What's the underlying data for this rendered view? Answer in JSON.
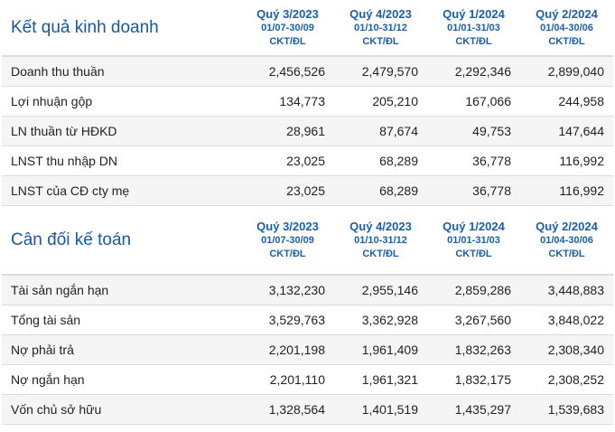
{
  "sections": [
    {
      "title": "Kết quả kinh doanh",
      "columns": [
        {
          "quarter": "Quý 3/2023",
          "range": "01/07-30/09",
          "audit": "CKT/ĐL"
        },
        {
          "quarter": "Quý 4/2023",
          "range": "01/10-31/12",
          "audit": "CKT/ĐL"
        },
        {
          "quarter": "Quý 1/2024",
          "range": "01/01-31/03",
          "audit": "CKT/ĐL"
        },
        {
          "quarter": "Quý 2/2024",
          "range": "01/04-30/06",
          "audit": "CKT/ĐL"
        }
      ],
      "rows": [
        {
          "label": "Doanh thu thuần",
          "values": [
            "2,456,526",
            "2,479,570",
            "2,292,346",
            "2,899,040"
          ]
        },
        {
          "label": "Lợi nhuận gộp",
          "values": [
            "134,773",
            "205,210",
            "167,066",
            "244,958"
          ]
        },
        {
          "label": "LN thuần từ HĐKD",
          "values": [
            "28,961",
            "87,674",
            "49,753",
            "147,644"
          ]
        },
        {
          "label": "LNST thu nhập DN",
          "values": [
            "23,025",
            "68,289",
            "36,778",
            "116,992"
          ]
        },
        {
          "label": "LNST của CĐ cty mẹ",
          "values": [
            "23,025",
            "68,289",
            "36,778",
            "116,992"
          ]
        }
      ]
    },
    {
      "title": "Cân đối kế toán",
      "columns": [
        {
          "quarter": "Quý 3/2023",
          "range": "01/07-30/09",
          "audit": "CKT/ĐL"
        },
        {
          "quarter": "Quý 4/2023",
          "range": "01/10-31/12",
          "audit": "CKT/ĐL"
        },
        {
          "quarter": "Quý 1/2024",
          "range": "01/01-31/03",
          "audit": "CKT/ĐL"
        },
        {
          "quarter": "Quý 2/2024",
          "range": "01/04-30/06",
          "audit": "CKT/ĐL"
        }
      ],
      "rows": [
        {
          "label": "Tài sản ngắn hạn",
          "values": [
            "3,132,230",
            "2,955,146",
            "2,859,286",
            "3,448,883"
          ]
        },
        {
          "label": "Tổng tài sản",
          "values": [
            "3,529,763",
            "3,362,928",
            "3,267,560",
            "3,848,022"
          ]
        },
        {
          "label": "Nợ phải trả",
          "values": [
            "2,201,198",
            "1,961,409",
            "1,832,263",
            "2,308,340"
          ]
        },
        {
          "label": "Nợ ngắn hạn",
          "values": [
            "2,201,110",
            "1,961,321",
            "1,832,175",
            "2,308,252"
          ]
        },
        {
          "label": "Vốn chủ sở hữu",
          "values": [
            "1,328,564",
            "1,401,519",
            "1,435,297",
            "1,539,683"
          ]
        }
      ]
    }
  ]
}
